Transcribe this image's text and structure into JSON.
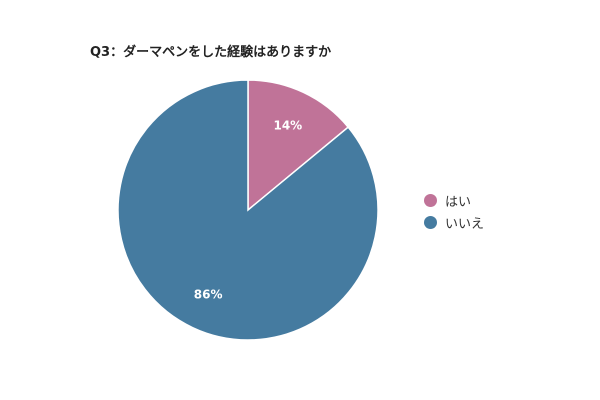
{
  "chart_data": {
    "type": "pie",
    "title": "Q3：ダーマペンをした経験はありますか",
    "categories": [
      "はい",
      "いいえ"
    ],
    "values": [
      14,
      86
    ],
    "labels": [
      "14%",
      "86%"
    ],
    "colors": [
      "#c07398",
      "#457ba0"
    ],
    "legend_position": "right"
  }
}
